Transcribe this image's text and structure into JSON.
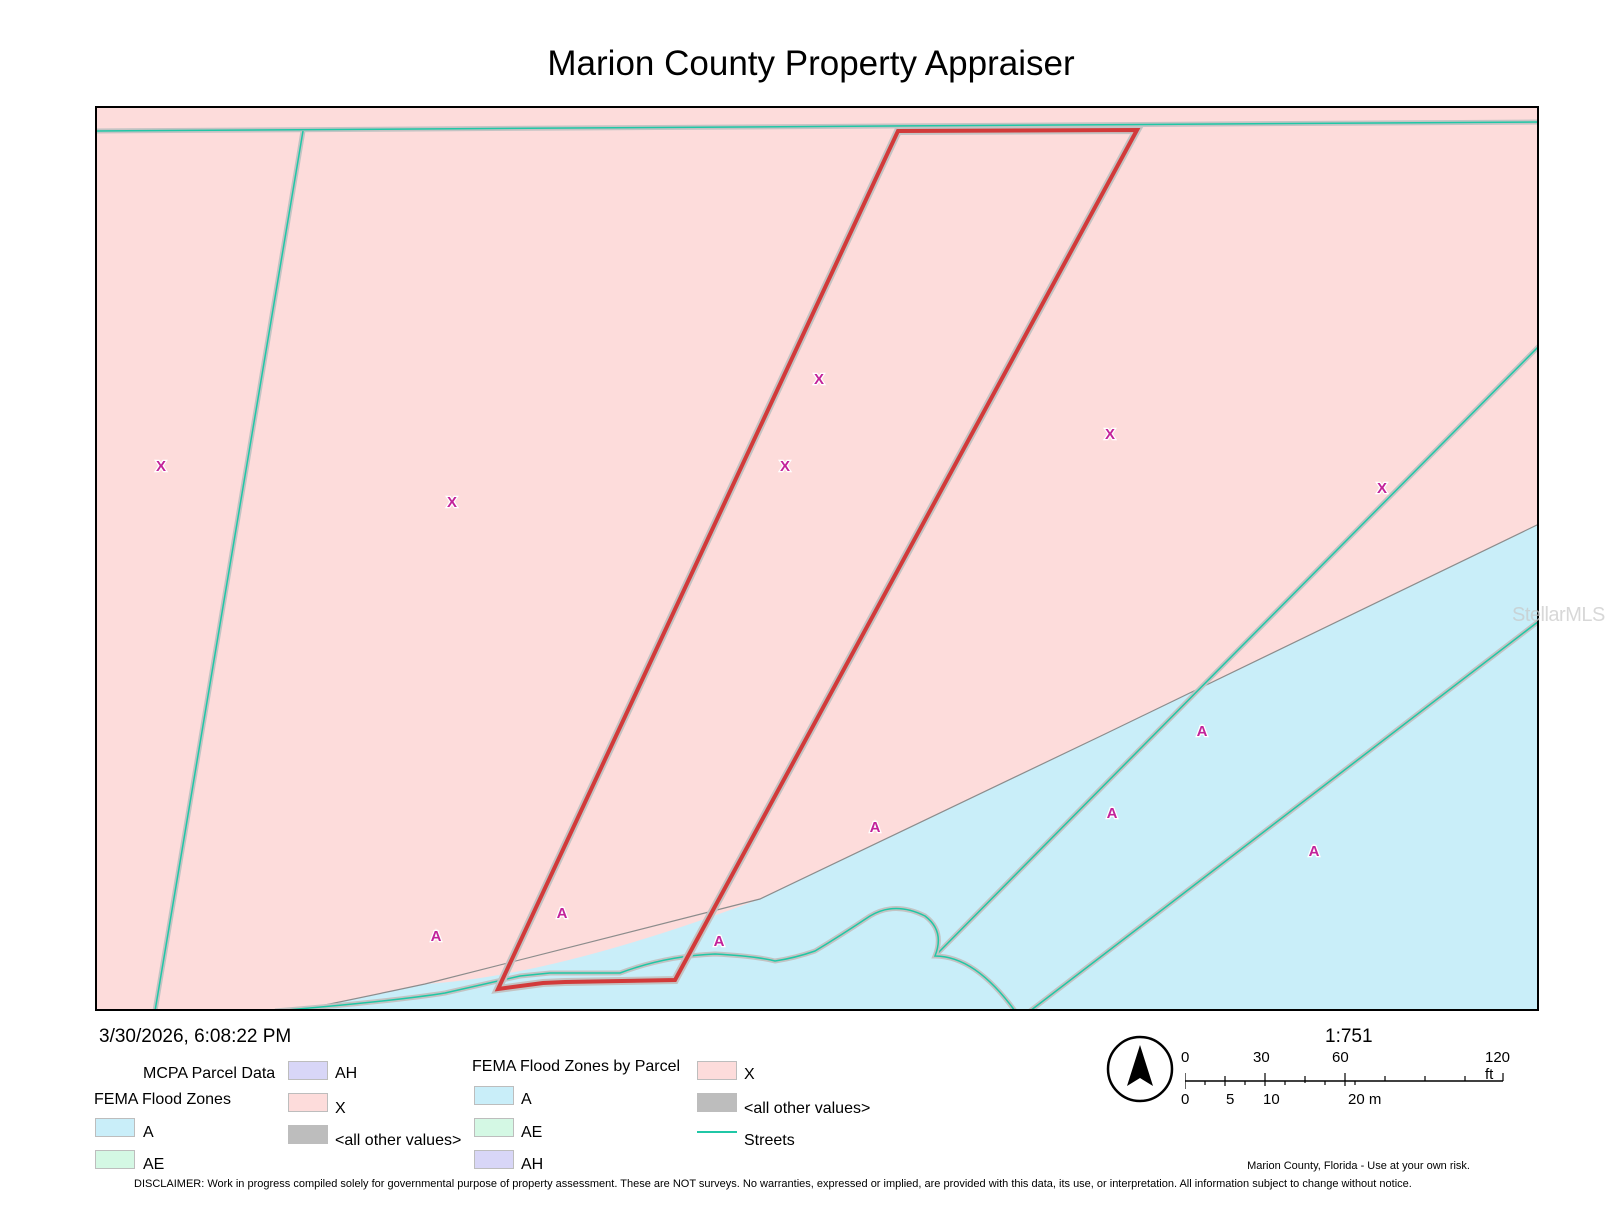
{
  "title": "Marion County Property Appraiser",
  "timestamp": "3/30/2026, 6:08:22 PM",
  "watermark": "StellarMLS",
  "colors": {
    "zone_x": "#fddcdb",
    "zone_a": "#c9eef9",
    "zone_ae": "#d4f8e4",
    "zone_ah": "#d8d6f7",
    "other": "#bdbdbd",
    "street": "#20c7a6",
    "parcel_highlight": "#d23a3a",
    "zone_label": "#c2229a"
  },
  "zone_labels": [
    {
      "text": "X"
    },
    {
      "text": "X"
    },
    {
      "text": "X"
    },
    {
      "text": "X"
    },
    {
      "text": "X"
    },
    {
      "text": "X"
    },
    {
      "text": "A"
    },
    {
      "text": "A"
    },
    {
      "text": "A"
    },
    {
      "text": "A"
    },
    {
      "text": "A"
    },
    {
      "text": "A"
    },
    {
      "text": "A"
    }
  ],
  "legend": {
    "parcel_data_title": "MCPA Parcel Data",
    "flood_zones_title": "FEMA Flood Zones",
    "flood_zones": [
      {
        "label": "A",
        "color": "#c9eef9"
      },
      {
        "label": "AE",
        "color": "#d4f8e4"
      },
      {
        "label": "AH",
        "color": "#d8d6f7"
      },
      {
        "label": "X",
        "color": "#fddcdb"
      },
      {
        "label": "<all other values>",
        "color": "#bdbdbd"
      }
    ],
    "by_parcel_title": "FEMA Flood Zones by Parcel",
    "by_parcel": [
      {
        "label": "A",
        "color": "#c9eef9"
      },
      {
        "label": "AE",
        "color": "#d4f8e4"
      },
      {
        "label": "AH",
        "color": "#d8d6f7"
      },
      {
        "label": "X",
        "color": "#fddcdb"
      },
      {
        "label": "<all other values>",
        "color": "#bdbdbd"
      }
    ],
    "streets_label": "Streets"
  },
  "scale": {
    "ratio": "1:751",
    "feet_ticks": [
      "0",
      "30",
      "60",
      "120 ft"
    ],
    "meter_ticks": [
      "0",
      "5",
      "10",
      "20 m"
    ]
  },
  "footer": {
    "note": "Marion County, Florida - Use at your own risk.",
    "disclaimer": "DISCLAIMER: Work in progress compiled solely for governmental purpose of property assessment. These are NOT surveys. No warranties, expressed or implied, are provided with this data, its use, or interpretation. All information subject to change without notice."
  }
}
